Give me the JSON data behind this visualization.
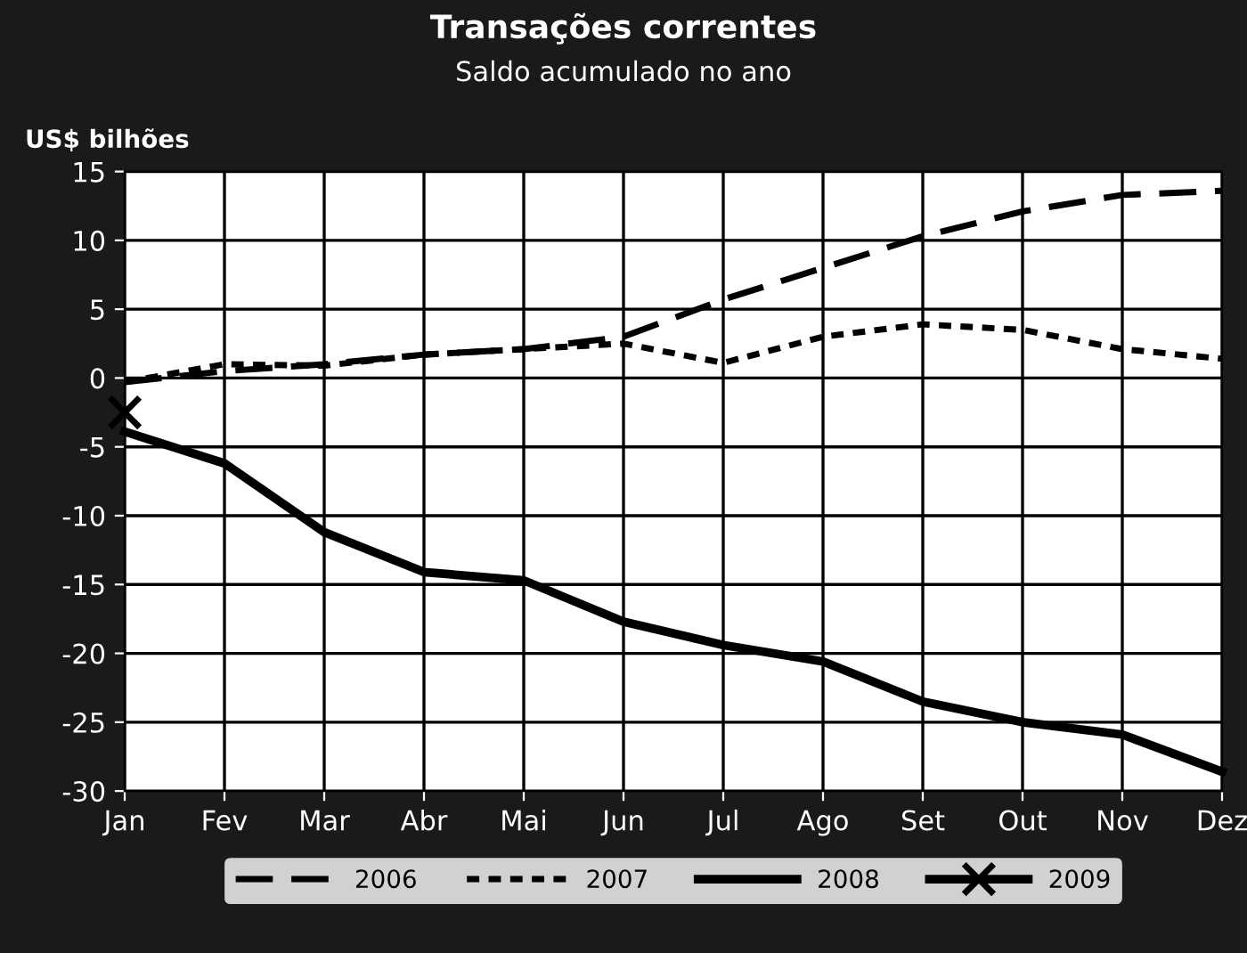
{
  "chart_data": {
    "type": "line",
    "title": "Transações correntes",
    "subtitle": "Saldo acumulado no ano",
    "ylabel": "US$ bilhões",
    "categories": [
      "Jan",
      "Fev",
      "Mar",
      "Abr",
      "Mai",
      "Jun",
      "Jul",
      "Ago",
      "Set",
      "Out",
      "Nov",
      "Dez"
    ],
    "series": [
      {
        "name": "2006",
        "color": "#000000",
        "line_style": "dashed",
        "values": [
          -0.3,
          0.5,
          1.0,
          1.7,
          2.1,
          3.0,
          5.7,
          8.0,
          10.3,
          12.1,
          13.3,
          13.6
        ]
      },
      {
        "name": "2007",
        "color": "#000000",
        "line_style": "dotted",
        "values": [
          -0.3,
          1.0,
          0.9,
          1.7,
          2.1,
          2.5,
          1.1,
          3.0,
          3.9,
          3.5,
          2.1,
          1.4
        ]
      },
      {
        "name": "2008",
        "color": "#000000",
        "line_style": "solid",
        "values": [
          -3.9,
          -6.2,
          -11.2,
          -14.1,
          -14.7,
          -17.7,
          -19.4,
          -20.6,
          -23.5,
          -25.0,
          -25.9,
          -28.6
        ]
      },
      {
        "name": "2009",
        "color": "#000000",
        "line_style": "solid",
        "marker": "cross",
        "values": [
          -2.5,
          null,
          null,
          null,
          null,
          null,
          null,
          null,
          null,
          null,
          null,
          null
        ]
      }
    ],
    "ylim": [
      -30,
      15
    ],
    "yticks": [
      -30,
      -25,
      -20,
      -15,
      -10,
      -5,
      0,
      5,
      10,
      15
    ],
    "grid": true,
    "legend": "bottom"
  }
}
